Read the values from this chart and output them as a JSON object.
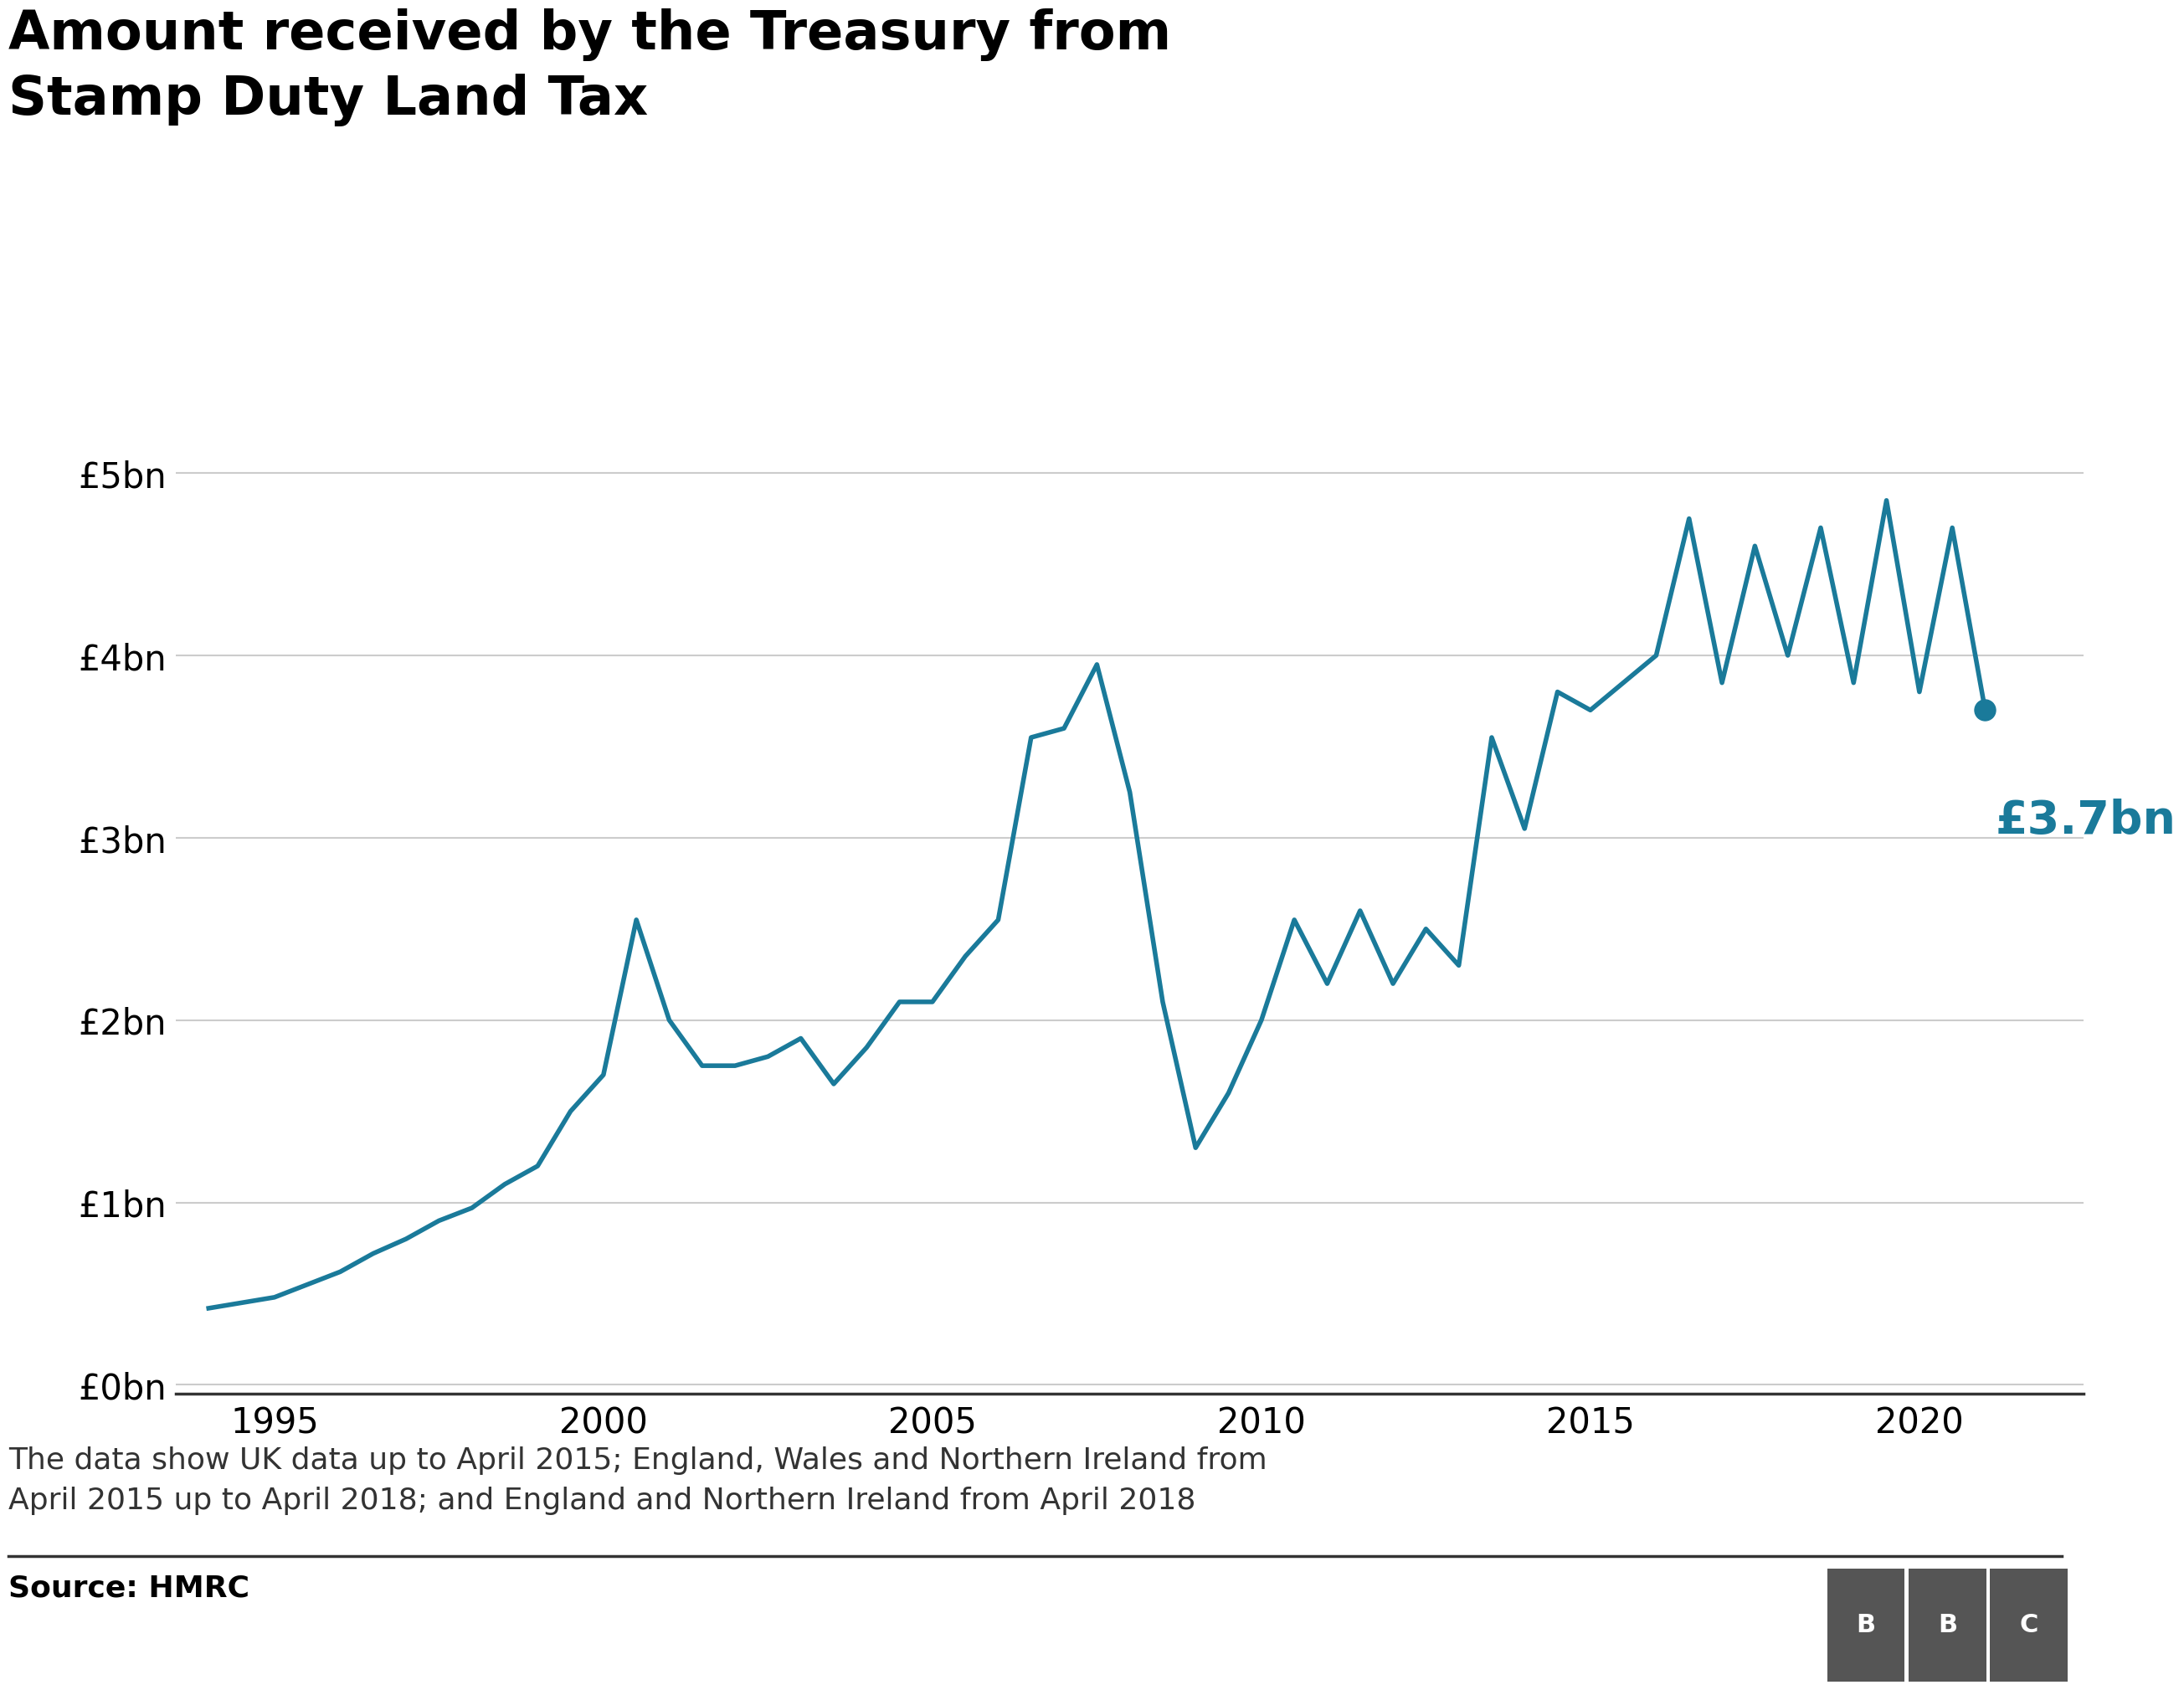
{
  "title": "Amount received by the Treasury from\nStamp Duty Land Tax",
  "line_color": "#1a7a9a",
  "background_color": "#ffffff",
  "annotation_text": "£3.7bn",
  "annotation_color": "#1a7a9a",
  "footnote": "The data show UK data up to April 2015; England, Wales and Northern Ireland from\nApril 2015 up to April 2018; and England and Northern Ireland from April 2018",
  "source": "Source: HMRC",
  "ytick_labels": [
    "£0bn",
    "£1bn",
    "£2bn",
    "£3bn",
    "£4bn",
    "£5bn"
  ],
  "ytick_values": [
    0,
    1,
    2,
    3,
    4,
    5
  ],
  "ylim": [
    -0.05,
    5.4
  ],
  "xlim": [
    1993.5,
    2022.5
  ],
  "xtick_values": [
    1995,
    2000,
    2005,
    2010,
    2015,
    2020
  ],
  "years": [
    1994,
    1994.5,
    1995,
    1995.5,
    1996,
    1996.5,
    1997,
    1997.5,
    1998,
    1998.5,
    1999,
    1999.5,
    2000,
    2000.5,
    2001,
    2001.5,
    2002,
    2002.5,
    2003,
    2003.5,
    2004,
    2004.5,
    2005,
    2005.5,
    2006,
    2006.5,
    2007,
    2007.5,
    2008,
    2008.5,
    2009,
    2009.5,
    2010,
    2010.5,
    2011,
    2011.5,
    2012,
    2012.5,
    2013,
    2013.5,
    2014,
    2014.5,
    2015,
    2015.5,
    2016,
    2016.5,
    2017,
    2017.5,
    2018,
    2018.5,
    2019,
    2019.5,
    2020,
    2020.5,
    2021
  ],
  "values": [
    0.42,
    0.45,
    0.48,
    0.55,
    0.62,
    0.72,
    0.8,
    0.9,
    0.97,
    1.1,
    1.2,
    1.5,
    1.7,
    2.55,
    2.0,
    1.75,
    1.75,
    1.8,
    1.9,
    1.65,
    1.85,
    2.1,
    2.1,
    2.35,
    2.55,
    3.55,
    3.6,
    3.95,
    3.25,
    2.1,
    1.3,
    1.6,
    2.0,
    2.55,
    2.2,
    2.6,
    2.2,
    2.5,
    2.3,
    3.55,
    3.05,
    3.8,
    3.7,
    3.85,
    4.0,
    4.75,
    3.85,
    4.6,
    4.0,
    4.7,
    3.85,
    4.85,
    3.8,
    4.7,
    3.7
  ],
  "last_x": 2021,
  "last_y": 3.7,
  "title_fontsize": 46,
  "tick_fontsize": 30,
  "annotation_fontsize": 40,
  "footnote_fontsize": 26,
  "source_fontsize": 26,
  "bbc_color": "#555555"
}
